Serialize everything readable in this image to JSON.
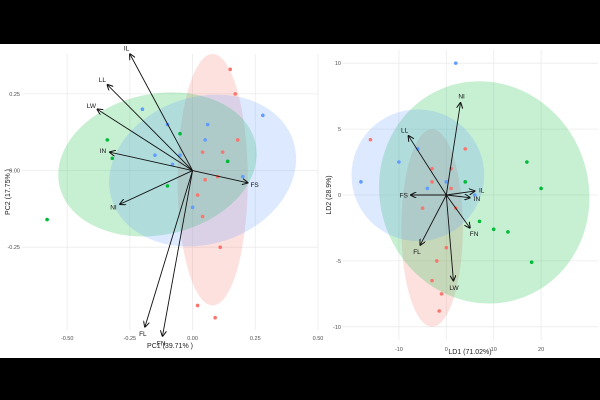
{
  "chart_data": [
    {
      "type": "scatter",
      "xlabel": "PC1 (39.71% )",
      "ylabel": "PC2 (17.75% )",
      "xlim": [
        -0.68,
        0.5
      ],
      "ylim": [
        -0.52,
        0.38
      ],
      "xticks": [
        "-0.50",
        "-0.25",
        "0.00",
        "0.25",
        "0.50"
      ],
      "xtick_values": [
        -0.5,
        -0.25,
        0,
        0.25,
        0.5
      ],
      "yticks": [
        "0.25",
        "0.00",
        "-0.25"
      ],
      "ytick_values": [
        0.25,
        0,
        -0.25
      ],
      "grid": true,
      "colors": [
        "#f8766d",
        "#00ba38",
        "#619cff"
      ],
      "ellipses": [
        {
          "group": 1,
          "color": "#f8766d",
          "cx": 0.08,
          "cy": -0.03,
          "rx": 0.14,
          "ry": 0.41,
          "angle": 0
        },
        {
          "group": 2,
          "color": "#00ba38",
          "cx": -0.14,
          "cy": 0.02,
          "rx": 0.4,
          "ry": 0.23,
          "angle": -12
        },
        {
          "group": 3,
          "color": "#619cff",
          "cx": 0.04,
          "cy": 0.0,
          "rx": 0.38,
          "ry": 0.24,
          "angle": -18
        }
      ],
      "points": [
        {
          "group": 1,
          "x": 0.15,
          "y": 0.33
        },
        {
          "group": 1,
          "x": 0.04,
          "y": 0.06
        },
        {
          "group": 1,
          "x": 0.05,
          "y": -0.03
        },
        {
          "group": 1,
          "x": 0.12,
          "y": 0.06
        },
        {
          "group": 1,
          "x": 0.02,
          "y": -0.08
        },
        {
          "group": 1,
          "x": 0.1,
          "y": -0.02
        },
        {
          "group": 1,
          "x": 0.11,
          "y": -0.25
        },
        {
          "group": 1,
          "x": 0.04,
          "y": -0.15
        },
        {
          "group": 1,
          "x": 0.02,
          "y": -0.44
        },
        {
          "group": 1,
          "x": 0.09,
          "y": -0.48
        },
        {
          "group": 1,
          "x": 0.17,
          "y": 0.25
        },
        {
          "group": 1,
          "x": 0.18,
          "y": 0.1
        },
        {
          "group": 2,
          "x": -0.58,
          "y": -0.16
        },
        {
          "group": 2,
          "x": -0.34,
          "y": 0.1
        },
        {
          "group": 2,
          "x": -0.32,
          "y": 0.04
        },
        {
          "group": 2,
          "x": -0.1,
          "y": -0.05
        },
        {
          "group": 2,
          "x": -0.05,
          "y": 0.12
        },
        {
          "group": 2,
          "x": 0.14,
          "y": 0.03
        },
        {
          "group": 3,
          "x": -0.2,
          "y": 0.2
        },
        {
          "group": 3,
          "x": -0.1,
          "y": 0.15
        },
        {
          "group": 3,
          "x": -0.05,
          "y": 0.05
        },
        {
          "group": 3,
          "x": 0.0,
          "y": -0.12
        },
        {
          "group": 3,
          "x": 0.05,
          "y": 0.1
        },
        {
          "group": 3,
          "x": 0.06,
          "y": 0.15
        },
        {
          "group": 3,
          "x": 0.2,
          "y": -0.02
        },
        {
          "group": 3,
          "x": 0.28,
          "y": 0.18
        },
        {
          "group": 3,
          "x": -0.15,
          "y": 0.05
        },
        {
          "group": 3,
          "x": -0.08,
          "y": 0.02
        }
      ],
      "vectors": [
        {
          "label": "IL",
          "x": -0.25,
          "y": 0.38
        },
        {
          "label": "LL",
          "x": -0.34,
          "y": 0.28
        },
        {
          "label": "LW",
          "x": -0.38,
          "y": 0.2
        },
        {
          "label": "IN",
          "x": -0.33,
          "y": 0.06
        },
        {
          "label": "NI",
          "x": -0.29,
          "y": -0.11
        },
        {
          "label": "FS",
          "x": 0.22,
          "y": -0.04
        },
        {
          "label": "FL",
          "x": -0.19,
          "y": -0.51
        },
        {
          "label": "FN",
          "x": -0.12,
          "y": -0.54
        }
      ]
    },
    {
      "type": "scatter",
      "xlabel": "LD1 (71.02%)",
      "ylabel": "LD2 (28.9%)",
      "xlim": [
        -22,
        32
      ],
      "ylim": [
        -11,
        11
      ],
      "xticks": [
        "-10",
        "0",
        "10",
        "20"
      ],
      "xtick_values": [
        -10,
        0,
        10,
        20
      ],
      "yticks": [
        "10",
        "5",
        "0",
        "-5",
        "-10"
      ],
      "ytick_values": [
        10,
        5,
        0,
        -5,
        -10
      ],
      "grid": true,
      "colors": [
        "#f8766d",
        "#00ba38",
        "#619cff"
      ],
      "ellipses": [
        {
          "group": 1,
          "color": "#f8766d",
          "cx": -3,
          "cy": -2.5,
          "rx": 6.5,
          "ry": 7.5,
          "angle": 0
        },
        {
          "group": 2,
          "color": "#00ba38",
          "cx": 8,
          "cy": 0.2,
          "rx": 22,
          "ry": 8.5,
          "angle": -20
        },
        {
          "group": 3,
          "color": "#619cff",
          "cx": -6,
          "cy": 1.5,
          "rx": 14,
          "ry": 5,
          "angle": 0
        }
      ],
      "points": [
        {
          "group": 1,
          "x": 1,
          "y": 2
        },
        {
          "group": 1,
          "x": -3,
          "y": 2
        },
        {
          "group": 1,
          "x": -5,
          "y": -1
        },
        {
          "group": 1,
          "x": 0,
          "y": -4
        },
        {
          "group": 1,
          "x": -2,
          "y": -5
        },
        {
          "group": 1,
          "x": -3,
          "y": -6.5
        },
        {
          "group": 1,
          "x": -1,
          "y": -7.5
        },
        {
          "group": 1,
          "x": -1.5,
          "y": -8.8
        },
        {
          "group": 1,
          "x": -3,
          "y": 1
        },
        {
          "group": 1,
          "x": 2,
          "y": -1
        },
        {
          "group": 1,
          "x": 4,
          "y": 3.5
        },
        {
          "group": 1,
          "x": -16,
          "y": 4.2
        },
        {
          "group": 1,
          "x": 1,
          "y": 0.5
        },
        {
          "group": 2,
          "x": 4,
          "y": 1
        },
        {
          "group": 2,
          "x": 10,
          "y": -2.6
        },
        {
          "group": 2,
          "x": 13,
          "y": -2.8
        },
        {
          "group": 2,
          "x": 17,
          "y": 2.5
        },
        {
          "group": 2,
          "x": 18,
          "y": -5.1
        },
        {
          "group": 2,
          "x": 7,
          "y": -2
        },
        {
          "group": 2,
          "x": 20,
          "y": 0.5
        },
        {
          "group": 3,
          "x": 2,
          "y": 10
        },
        {
          "group": 3,
          "x": -18,
          "y": 1
        },
        {
          "group": 3,
          "x": -10,
          "y": 2.5
        },
        {
          "group": 3,
          "x": -4,
          "y": 0.5
        },
        {
          "group": 3,
          "x": 0,
          "y": 1
        },
        {
          "group": 3,
          "x": -6,
          "y": 3.5
        },
        {
          "group": 3,
          "x": 6,
          "y": 0
        }
      ],
      "vectors": [
        {
          "label": "NI",
          "x": 3,
          "y": 7
        },
        {
          "label": "LL",
          "x": -8,
          "y": 4.5
        },
        {
          "label": "FS",
          "x": -7.5,
          "y": 0
        },
        {
          "label": "IL",
          "x": 6,
          "y": 0.3
        },
        {
          "label": "IN",
          "x": 5,
          "y": -0.2
        },
        {
          "label": "FN",
          "x": 5,
          "y": -2.5
        },
        {
          "label": "FL",
          "x": -5.5,
          "y": -3.8
        },
        {
          "label": "LW",
          "x": 1.5,
          "y": -6.5
        }
      ]
    }
  ]
}
